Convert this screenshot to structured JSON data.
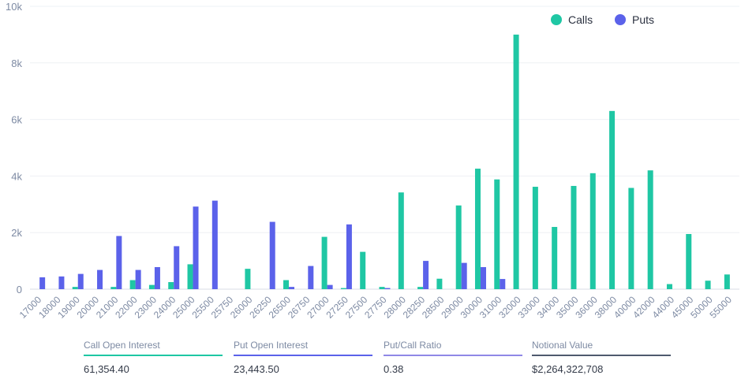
{
  "chart_data": {
    "type": "bar",
    "categories": [
      "17000",
      "18000",
      "19000",
      "20000",
      "21000",
      "22000",
      "23000",
      "24000",
      "25000",
      "25500",
      "25750",
      "26000",
      "26250",
      "26500",
      "26750",
      "27000",
      "27250",
      "27500",
      "27750",
      "28000",
      "28250",
      "28500",
      "29000",
      "30000",
      "31000",
      "32000",
      "33000",
      "34000",
      "35000",
      "36000",
      "38000",
      "40000",
      "42000",
      "44000",
      "45000",
      "50000",
      "55000"
    ],
    "series": [
      {
        "name": "Calls",
        "color": "#1fc7a4",
        "values": [
          0,
          0,
          80,
          0,
          80,
          320,
          150,
          250,
          880,
          0,
          0,
          720,
          0,
          320,
          0,
          1850,
          40,
          1320,
          80,
          3420,
          80,
          370,
          2960,
          4260,
          3880,
          9000,
          3620,
          2200,
          3650,
          4100,
          6300,
          3580,
          4200,
          180,
          1950,
          300,
          520
        ]
      },
      {
        "name": "Puts",
        "color": "#5b62ea",
        "values": [
          420,
          450,
          540,
          680,
          1880,
          680,
          780,
          1520,
          2920,
          3130,
          0,
          0,
          2380,
          80,
          820,
          150,
          2290,
          0,
          40,
          0,
          1000,
          0,
          930,
          780,
          360,
          0,
          0,
          0,
          0,
          0,
          0,
          0,
          0,
          0,
          0,
          0,
          0
        ]
      }
    ],
    "yticks": [
      0,
      2000,
      4000,
      6000,
      8000,
      10000
    ],
    "ytick_labels": [
      "0",
      "2k",
      "4k",
      "6k",
      "8k",
      "10k"
    ],
    "ylim": [
      0,
      10000
    ],
    "legend_position": "top-right",
    "grid": true
  },
  "stats": [
    {
      "label": "Call Open Interest",
      "value": "61,354.40",
      "color": "#1fc7a4"
    },
    {
      "label": "Put Open Interest",
      "value": "23,443.50",
      "color": "#5b62ea"
    },
    {
      "label": "Put/Call Ratio",
      "value": "0.38",
      "color": "#8f88e6"
    },
    {
      "label": "Notional Value",
      "value": "$2,264,322,708",
      "color": "#4f5a6e"
    }
  ]
}
